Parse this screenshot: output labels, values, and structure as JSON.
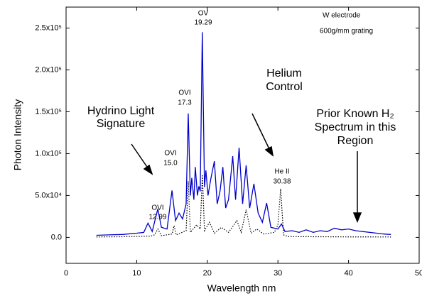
{
  "chart_data": {
    "type": "line",
    "xlabel": "Wavelength nm",
    "ylabel": "Photon Intensity",
    "xlim": [
      0,
      50
    ],
    "xticks": [
      0,
      10,
      20,
      30,
      40,
      50
    ],
    "ylim": [
      -31000,
      275000
    ],
    "yticks": [
      {
        "value": 0,
        "label": "0.0"
      },
      {
        "value": 50000,
        "label": "5.0x10⁴"
      },
      {
        "value": 100000,
        "label": "1.0x10⁵"
      },
      {
        "value": 150000,
        "label": "1.5x10⁵"
      },
      {
        "value": 200000,
        "label": "2.0x10⁵"
      },
      {
        "value": 250000,
        "label": "2.5x10⁵"
      }
    ],
    "series": [
      {
        "color": "#0000cc",
        "style": "solid",
        "x": [
          4.3,
          6,
          8,
          10,
          11,
          11.6,
          12.2,
          12.99,
          13.5,
          14.3,
          15.0,
          15.5,
          16.0,
          16.5,
          17.0,
          17.3,
          17.6,
          17.8,
          18.1,
          18.3,
          18.6,
          18.8,
          19.0,
          19.29,
          19.6,
          19.8,
          20.1,
          20.5,
          21.0,
          21.4,
          21.8,
          22.2,
          22.6,
          23.0,
          23.6,
          24.0,
          24.5,
          25.0,
          25.5,
          26.0,
          26.6,
          27.2,
          27.8,
          28.4,
          29.0,
          30.0,
          30.5,
          31.0,
          32,
          33,
          34,
          35,
          36,
          37,
          38,
          39,
          40,
          41,
          42,
          43,
          44,
          45,
          46
        ],
        "values": [
          2500,
          3000,
          3500,
          5000,
          6000,
          17000,
          7000,
          34000,
          12000,
          10000,
          56000,
          20000,
          29000,
          22000,
          40000,
          148000,
          50000,
          71000,
          45000,
          84000,
          50000,
          61000,
          55000,
          245000,
          60000,
          80000,
          50000,
          70000,
          91000,
          40000,
          55000,
          84000,
          35000,
          45000,
          97000,
          45000,
          107000,
          40000,
          86000,
          35000,
          64000,
          29000,
          18000,
          41000,
          12000,
          10000,
          16000,
          7000,
          8000,
          6000,
          9000,
          6000,
          8000,
          7000,
          11000,
          9000,
          10000,
          8000,
          7000,
          6000,
          5000,
          4000,
          3500
        ]
      },
      {
        "color": "#000000",
        "style": "dotted",
        "x": [
          4.3,
          8,
          12,
          12.5,
          13.0,
          13.5,
          15.0,
          15.3,
          15.6,
          17.0,
          17.3,
          17.6,
          18.5,
          19.0,
          19.3,
          19.6,
          20.3,
          21,
          22,
          23,
          24.2,
          24.8,
          25.5,
          26.2,
          27,
          28,
          29.5,
          30.0,
          30.38,
          30.8,
          31.5,
          35,
          40,
          46
        ],
        "values": [
          500,
          800,
          1500,
          3000,
          10000,
          2000,
          4000,
          14000,
          3000,
          8000,
          67000,
          6000,
          15000,
          10000,
          75000,
          8000,
          18000,
          5000,
          12000,
          6000,
          20000,
          6000,
          33000,
          5000,
          10000,
          4000,
          6000,
          15000,
          58000,
          3000,
          1000,
          800,
          600,
          500
        ]
      }
    ],
    "annotations": [
      [
        "OV",
        "19.29"
      ],
      [
        "OVI",
        "17.3"
      ],
      [
        "OVI",
        "15.0"
      ],
      [
        "OVI",
        "12.99"
      ],
      [
        "He II",
        "30.38"
      ],
      [
        "W electrode",
        "600g/mm grating"
      ],
      [
        "Hydrino Light",
        "Signature"
      ],
      [
        "Helium",
        "Control"
      ],
      [
        "Prior Known H₂",
        "Spectrum  in this",
        "Region"
      ]
    ]
  }
}
